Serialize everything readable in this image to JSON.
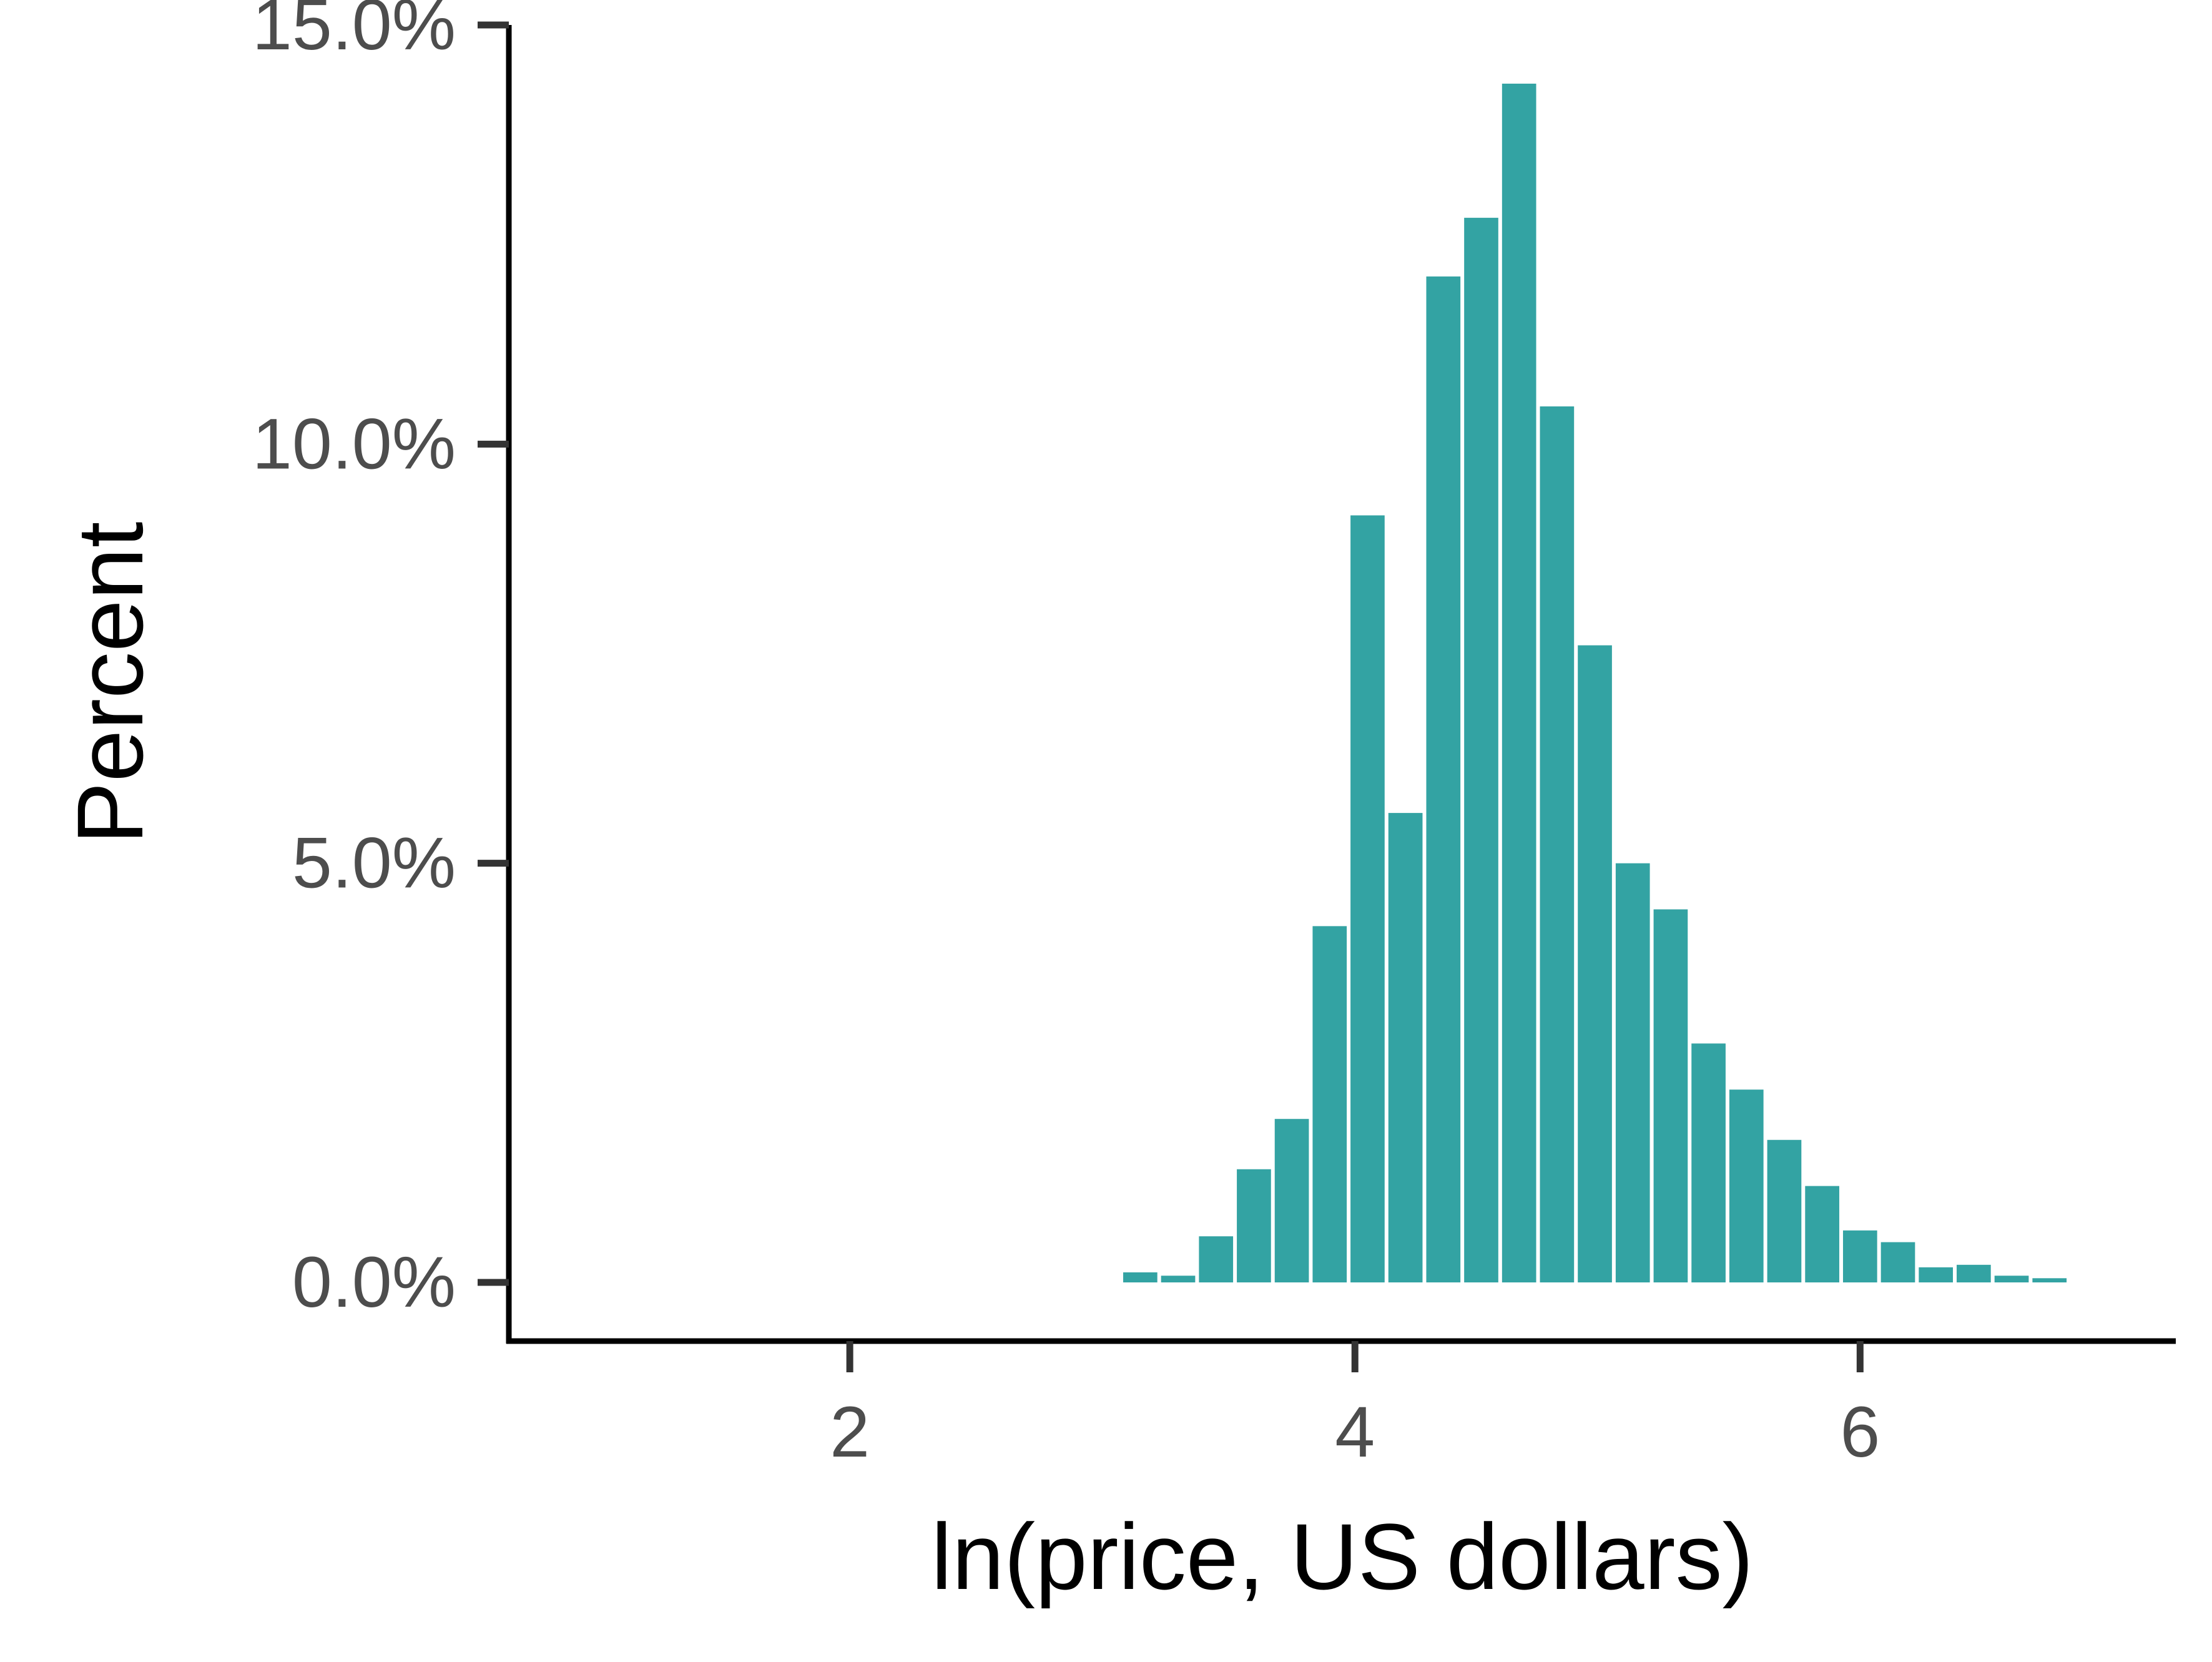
{
  "chart_data": {
    "type": "bar",
    "xlabel": "ln(price, US dollars)",
    "ylabel": "Percent",
    "xlim": [
      0.65,
      7.25
    ],
    "ylim": [
      -0.7,
      15.0
    ],
    "xticks": [
      2,
      4,
      6
    ],
    "xtick_labels": [
      "2",
      "4",
      "6"
    ],
    "yticks": [
      0,
      5,
      10,
      15
    ],
    "ytick_labels": [
      "0.0%",
      "5.0%",
      "10.0%",
      "15.0%"
    ],
    "bin_width": 0.15,
    "bars_x": [
      3.15,
      3.3,
      3.45,
      3.6,
      3.75,
      3.9,
      4.05,
      4.2,
      4.35,
      4.5,
      4.65,
      4.8,
      4.95,
      5.1,
      5.25,
      5.4,
      5.55,
      5.7,
      5.85,
      6.0,
      6.15,
      6.3,
      6.45,
      6.6,
      6.75
    ],
    "values": [
      0.12,
      0.08,
      0.55,
      1.35,
      1.95,
      4.25,
      9.15,
      5.6,
      12.0,
      12.7,
      14.3,
      10.45,
      7.6,
      5.0,
      4.45,
      2.85,
      2.3,
      1.7,
      1.15,
      0.62,
      0.48,
      0.18,
      0.21,
      0.08,
      0.05
    ],
    "bar_color": "#33a3a3",
    "axis_color": "#000000",
    "tick_color": "#333333",
    "tick_label_color": "#4d4d4d",
    "grid": false,
    "legend": "none"
  }
}
